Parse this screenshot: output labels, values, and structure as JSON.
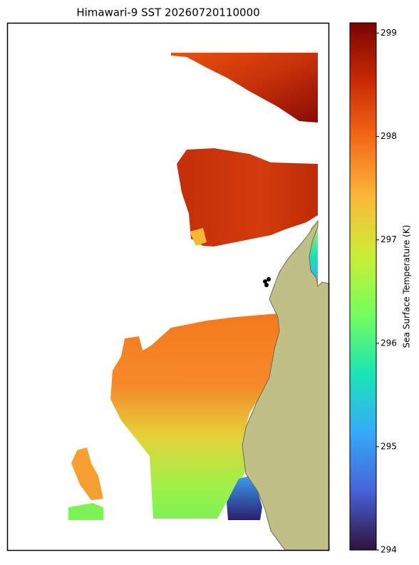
{
  "chart_data": {
    "type": "map",
    "title": "Himawari-9 SST 20260720110000",
    "colorbar": {
      "label": "Sea Surface Temperature (K)",
      "lim": [
        294,
        299.1
      ],
      "ticks": [
        294,
        295,
        296,
        297,
        298,
        299
      ],
      "colormap": "turbo"
    }
  }
}
